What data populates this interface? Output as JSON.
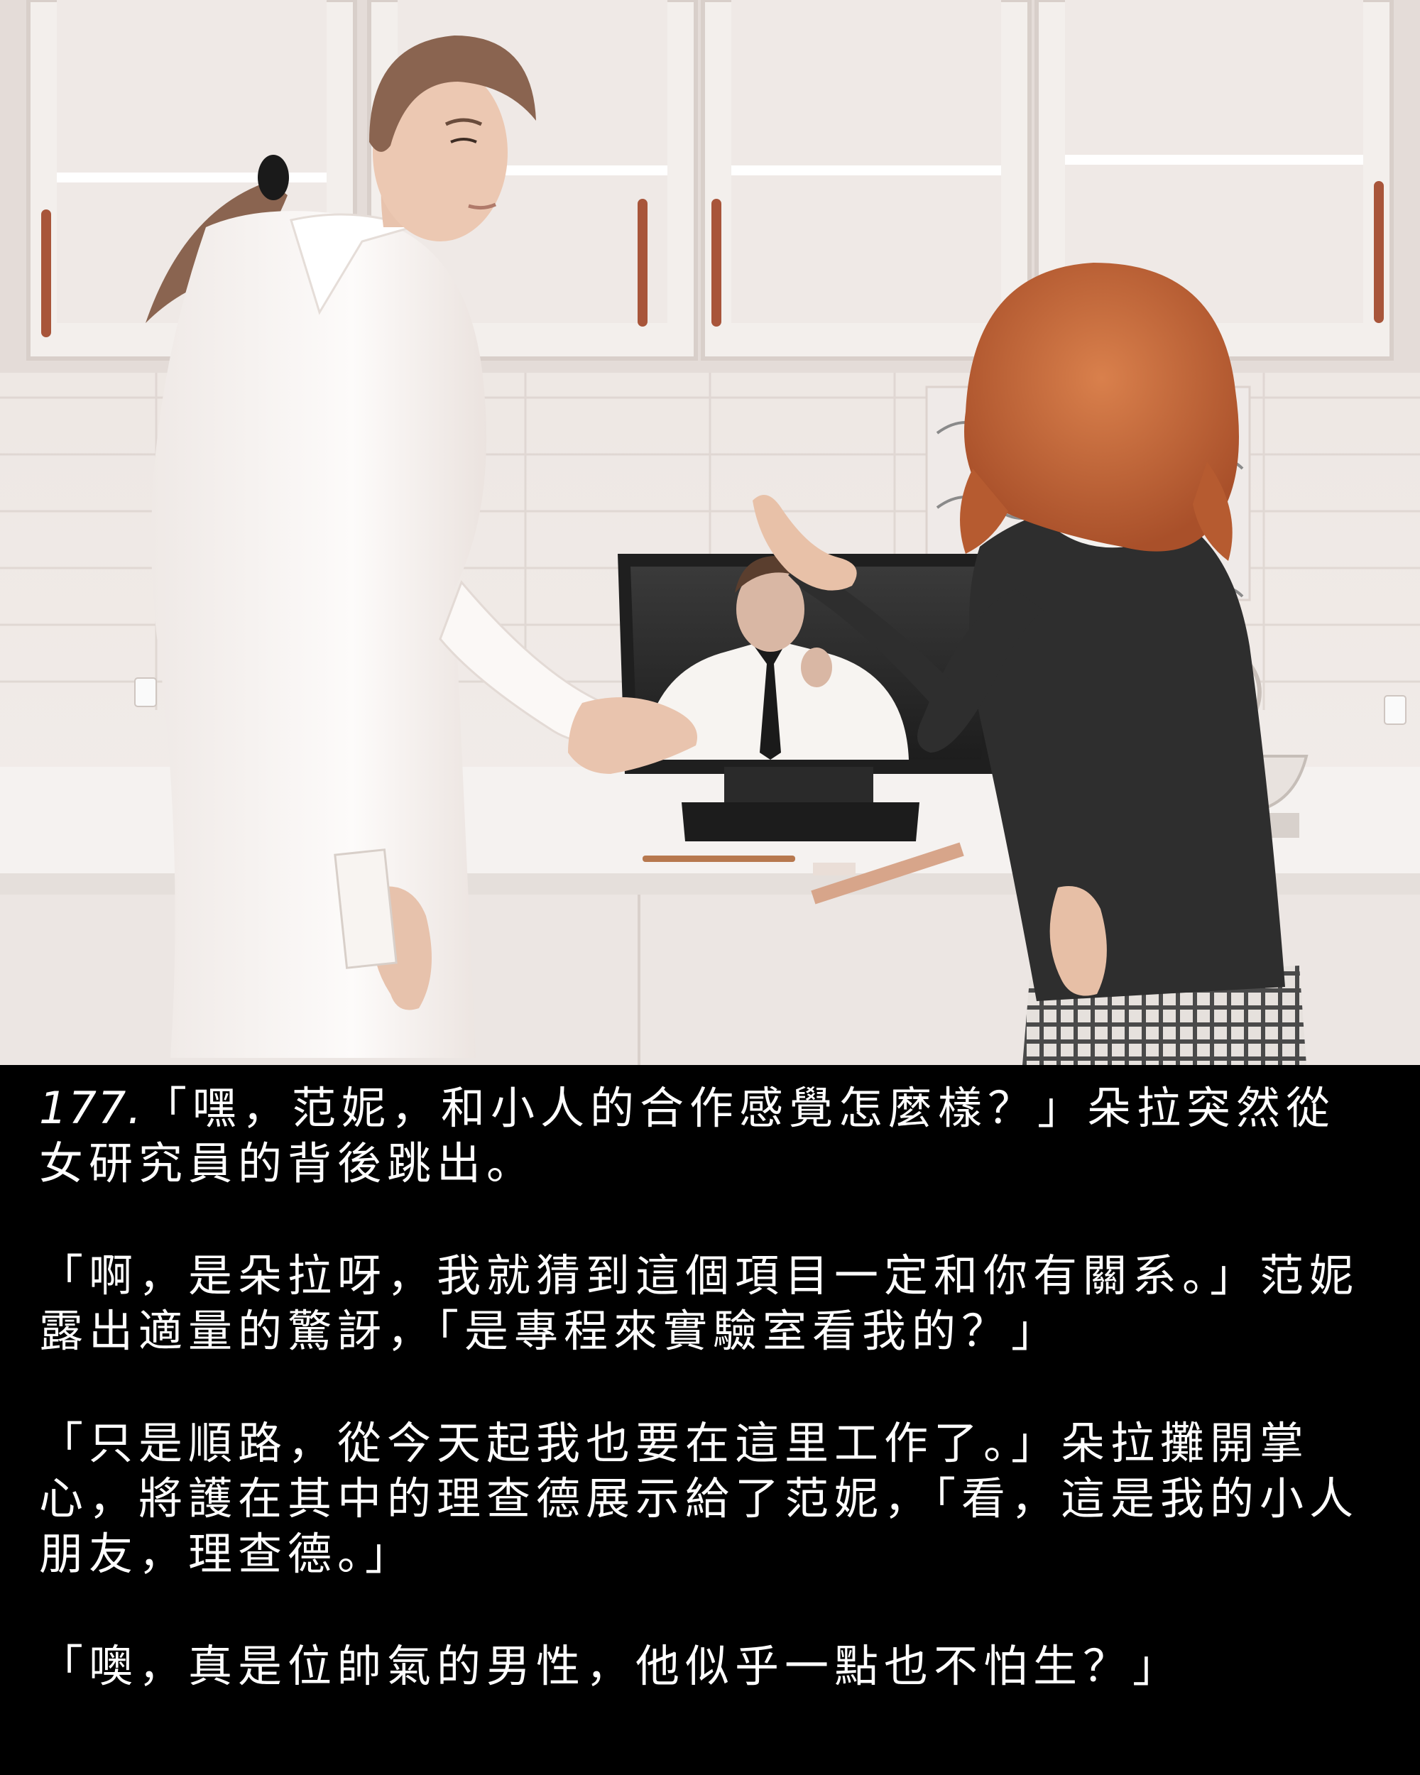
{
  "story": {
    "panel_number": "177.",
    "paragraphs": [
      "「嘿，范妮，和小人的合作感覺怎麼樣？」朵拉突然從女研究員的背後跳出。",
      "「啊，是朵拉呀，我就猜到這個項目一定和你有關系。」范妮露出適量的驚訝，「是專程來實驗室看我的？」",
      "「只是順路，從今天起我也要在這里工作了。」朵拉攤開掌心，將護在其中的理查德展示給了范妮，「看，這是我的小人朋友，理查德。」",
      "「噢，真是位帥氣的男性，他似乎一點也不怕生？」"
    ]
  },
  "colors": {
    "background": "#000000",
    "text": "#ffffff",
    "cabinet": "#f1ece9",
    "counter": "#f4f1ef",
    "handle": "#a8553a",
    "sweater": "#2e2e2e",
    "hair_orange": "#c5693d",
    "hair_brown": "#8a6450",
    "lab_coat": "#fbf8f6",
    "monitor": "#222222"
  }
}
